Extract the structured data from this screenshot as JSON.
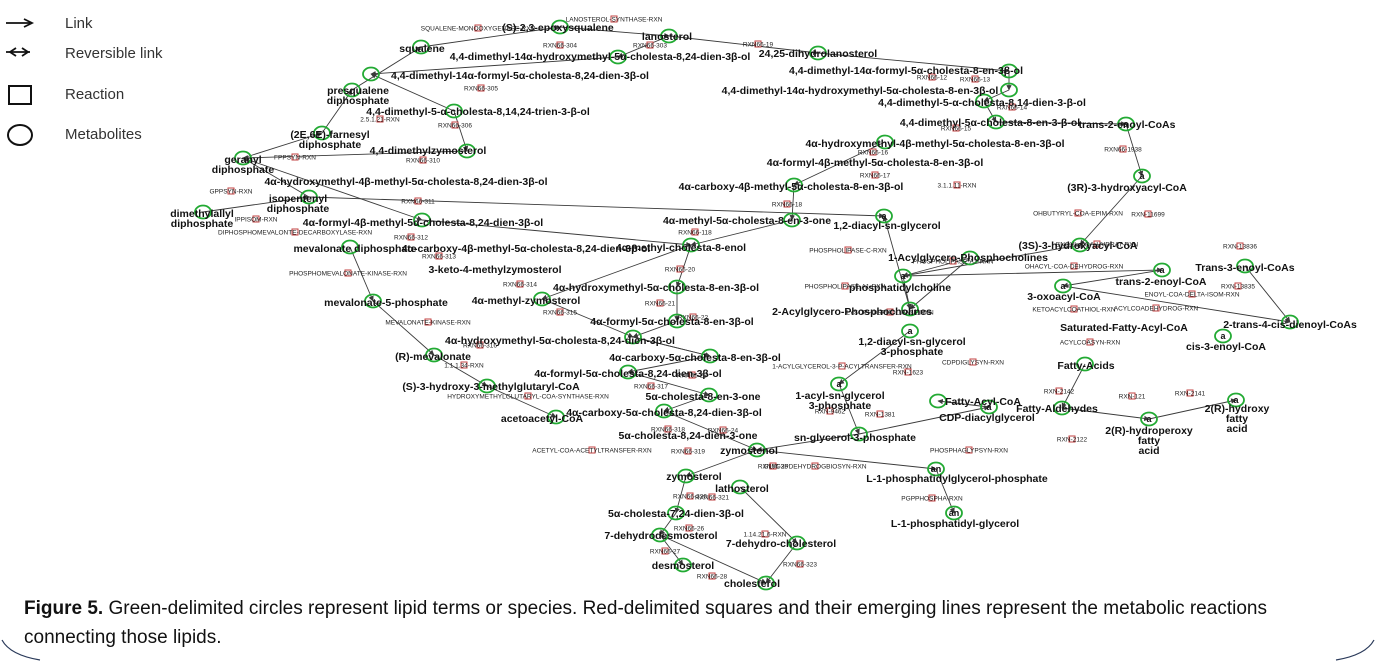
{
  "legend": {
    "link": "Link",
    "reversible_link": "Reversible link",
    "reaction": "Reaction",
    "metabolites": "Metabolites"
  },
  "caption": {
    "label": "Figure 5.",
    "text": " Green-delimited circles represent lipid terms or species. Red-delimited squares and their emerging lines represent the metabolic reactions connecting those lipids."
  },
  "colors": {
    "metabolite": "#22aa33",
    "reaction": "#c24040",
    "edge": "#3a3a3a"
  },
  "metabolites": [
    "(S)-2,3-epoxysqualene",
    "lanosterol",
    "squalene",
    "4,4-dimethyl-14α-hydroxymethyl-5α-cholesta-8,24-dien-3β-ol",
    "24,25-dihydrolanosterol",
    "4,4-dimethyl-14α-formyl-5α-cholesta-8,24-dien-3β-ol",
    "4,4-dimethyl-14α-formyl-5α-cholesta-8-en-3β-ol",
    "presqualene",
    "diphosphate",
    "4,4-dimethyl-14α-hydroxymethyl-5α-cholesta-8-en-3β-ol",
    "4,4-dimethyl-5-α-cholesta-8,14,24-trien-3-β-ol",
    "4,4-dimethyl-5-α-cholesta-8,14-dien-3-β-ol",
    "4,4-dimethyl-5α-cholesta-8-en-3-β-ol",
    "trans-2-enoyl-CoAs",
    "(2E,6E)-farnesyl",
    "diphosphate",
    "4,4-dimethylzymosterol",
    "4α-hydroxymethyl-4β-methyl-5α-cholesta-8-en-3β-ol",
    "geranyl",
    "diphosphate",
    "4α-formyl-4β-methyl-5α-cholesta-8-en-3β-ol",
    "4α-hydroxymethyl-4β-methyl-5α-cholesta-8,24-dien-3β-ol",
    "4α-carboxy-4β-methyl-5α-cholesta-8-en-3β-ol",
    "(3R)-3-hydroxyacyl-CoA",
    "isopentenyl",
    "diphosphate",
    "dimethylallyl",
    "diphosphate",
    "4α-formyl-4β-methyl-5α-cholesta-8,24-dien-3β-ol",
    "4α-methyl-5α-cholesta-8-en-3-one",
    "1,2-diacyl-sn-glycerol",
    "mevalonate diphosphate",
    "4α-carboxy-4β-methyl-5α-cholesta-8,24-dien-3β-ol",
    "4α-methyl-cholesta-8-enol",
    "(3S)-3-hydroxyacyl-CoA",
    "1-Acylglycero-Phosphocholines",
    "3-keto-4-methylzymosterol",
    "trans-2-enoyl-CoA",
    "Trans-3-enoyl-CoAs",
    "4α-hydroxymethyl-5α-cholesta-8-en-3β-ol",
    "phosphatidylcholine",
    "mevalonate-5-phosphate",
    "4α-methyl-zymosterol",
    "3-oxoacyl-CoA",
    "2-Acylglycero-Phosphocholines",
    "4α-formyl-5α-cholesta-8-en-3β-ol",
    "Saturated-Fatty-Acyl-CoA",
    "2-trans-4-cis-dienoyl-CoAs",
    "4α-hydroxymethyl-5α-cholesta-8,24-dien-3β-ol",
    "1,2-diacyl-sn-glycerol",
    "3-phosphate",
    "cis-3-enoyl-CoA",
    "(R)-mevalonate",
    "4α-carboxy-5α-cholesta-8-en-3β-ol",
    "Fatty-Acids",
    "4α-formyl-5α-cholesta-8,24-dien-3β-ol",
    "(S)-3-hydroxy-3-methylglutaryl-CoA",
    "5α-cholesta-8-en-3-one",
    "1-acyl-sn-glycerol",
    "3-phosphate",
    "Fatty-Acyl-CoA",
    "acetoacetyl-CoA",
    "4α-carboxy-5α-cholesta-8,24-dien-3β-ol",
    "Fatty-Aldehydes",
    "CDP-diacylglycerol",
    "2(R)-hydroxy",
    "fatty",
    "acid",
    "5α-cholesta-8,24-dien-3-one",
    "sn-glycerol-3-phosphate",
    "2(R)-hydroperoxy",
    "fatty",
    "acid",
    "zymostenol",
    "L-1-phosphatidylglycerol-phosphate",
    "zymosterol",
    "lathosterol",
    "5α-cholesta-7,24-dien-3β-ol",
    "L-1-phosphatidyl-glycerol",
    "7-dehydrodesmosterol",
    "7-dehydro-cholesterol",
    "desmosterol",
    "cholesterol"
  ],
  "reactions": [
    "LANOSTEROL-SYNTHASE-RXN",
    "SQUALENE-MONOOXYGENASE-RXN",
    "RXN66-304",
    "RXN66-303",
    "RXN66-19",
    "RXN66-12",
    "RXN66-13",
    "RXN66-305",
    "2.5.1.21-RXN",
    "RXN66-14",
    "RXN66-306",
    "RXN66-15",
    "RXN66-16",
    "RXN66-310",
    "FPPSYN-RXN",
    "RXN66-17",
    "RXN66-1938",
    "GPPSYN-RXN",
    "RXN66-311",
    "RXN66-18",
    "3.1.1.11-RXN",
    "IPPISOM-RXN",
    "OHBUTYRYL-COA-EPIM-RXN",
    "RXN-11699",
    "DIPHOSPHOMEVALONTE-DECARBOXYLASE-RXN",
    "RXN66-312",
    "RXN66-118",
    "PHOSPHOLIPASE-C-RXN",
    "ENOYL-COA-HYDRAT-RXN",
    "RXN66-313",
    "RXN-13836",
    "PHOSPHOLIPASE-A2-RXN",
    "PHOSPHOMEVALONATE-KINASE-RXN",
    "OHACYL-COA-DEHYDROG-RXN",
    "RXN66-20",
    "RXN66-314",
    "RXN-13835",
    "ENOYL-COA-DELTA-ISOM-RXN",
    "PHOSPHOLIPASE-A1-RXN",
    "RXN66-21",
    "RXN66-315",
    "KETOACYLCOATHIOL-RXN",
    "ACYLCOADEHYDROG-RXN",
    "LYSOPHOSPHOLIPASE-RXN",
    "MEVALONATE-KINASE-RXN",
    "RXN66-22",
    "RXN66-316",
    "ACYLCOASYN-RXN",
    "1.1.1.34-RXN",
    "1-ACYLGLYCEROL-3-P-ACYLTRANSFER-RXN",
    "CDPDIGLYSYN-RXN",
    "RXN66-23",
    "RXN-1623",
    "RXN66-317",
    "HYDROXYMETHYLGLUTARYL-COA-SYNTHASE-RXN",
    "RXN-2142",
    "RXN-121",
    "RXN-2141",
    "RXN-9462",
    "RXN-1381",
    "RXN66-318",
    "RXN66-24",
    "RXN-2122",
    "ACETYL-COA-ACETYLTRANSFER-RXN",
    "RXN66-319",
    "PHOSPHAGLYPSYN-RXN",
    "RXN66-25",
    "GLYC3PDEHYDROGBIOSYN-RXN",
    "RXN66-320",
    "RXN66-321",
    "PGPPHOSPHA-RXN",
    "RXN66-26",
    "1.14.21.6-RXN",
    "RXN66-27",
    "RXN66-323",
    "RXN66-28"
  ]
}
